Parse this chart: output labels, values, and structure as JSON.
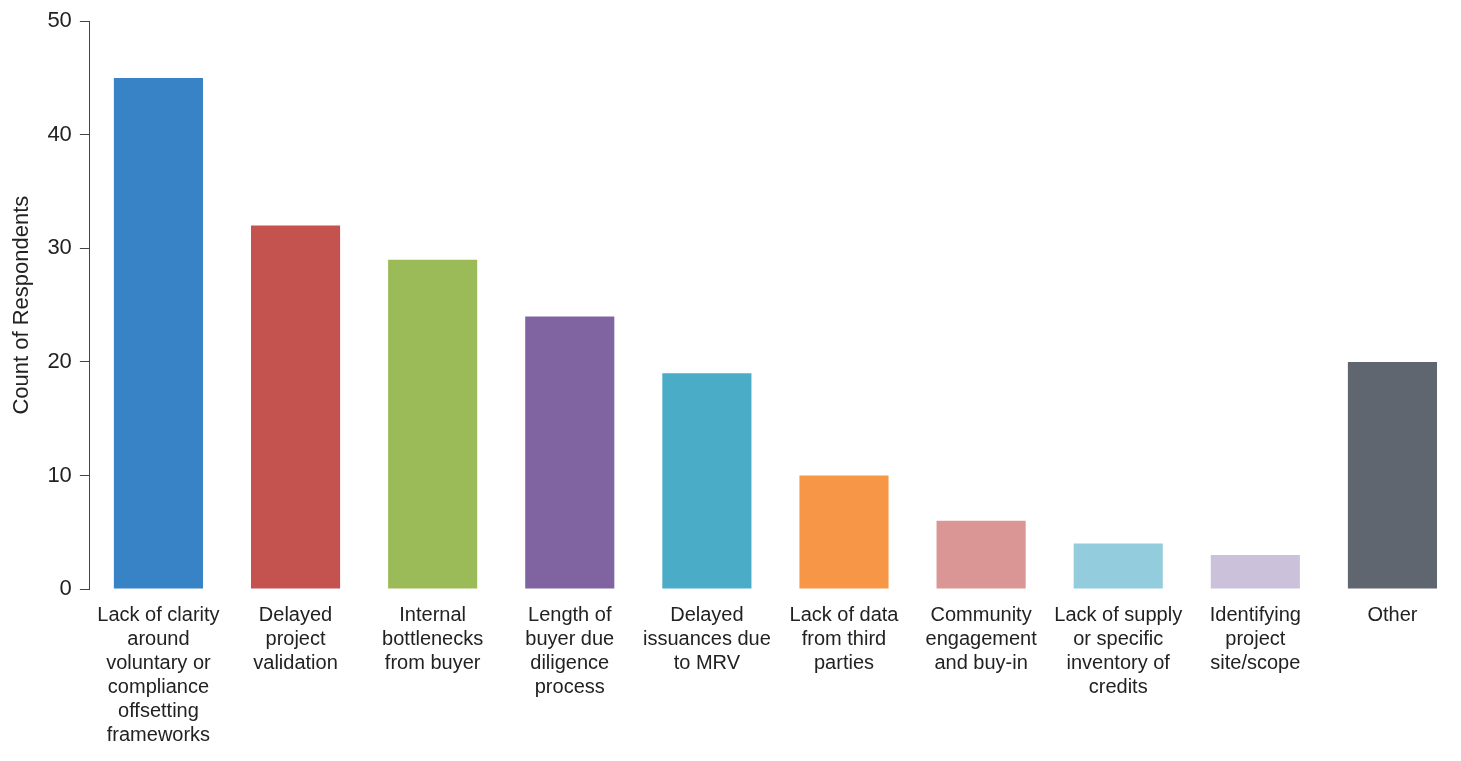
{
  "chart_data": {
    "type": "bar",
    "ylabel": "Count of Respondents",
    "categories": [
      "Lack of clarity around voluntary or compliance offsetting frameworks",
      "Delayed project validation",
      "Internal bottlenecks from buyer",
      "Length of buyer due diligence process",
      "Delayed issuances due to MRV",
      "Lack of data from third parties",
      "Community engagement and buy-in",
      "Lack of supply or specific inventory of credits",
      "Identifying project site/scope",
      "Other"
    ],
    "values": [
      45,
      32,
      29,
      24,
      19,
      10,
      6,
      4,
      3,
      20
    ],
    "colors": [
      "#3883c6",
      "#c4524f",
      "#9bbb59",
      "#8064a2",
      "#4aacc6",
      "#f79646",
      "#d99694",
      "#93cddd",
      "#ccc1da",
      "#5f6670"
    ],
    "ylim": [
      0,
      50
    ],
    "yticks": [
      0,
      10,
      20,
      30,
      40,
      50
    ],
    "grid": false,
    "legend": false
  }
}
